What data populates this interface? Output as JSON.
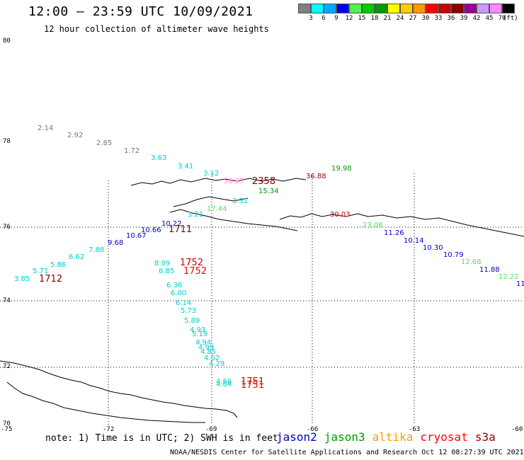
{
  "header": {
    "title": "12:00 – 23:59 UTC 10/09/2021",
    "subtitle": "12 hour collection of altimeter wave heights"
  },
  "legend": {
    "colors": [
      "#808080",
      "#00ffff",
      "#00aaff",
      "#0000ee",
      "#55ee55",
      "#00cc00",
      "#009900",
      "#ffff00",
      "#ffcc00",
      "#ff9900",
      "#ff0000",
      "#cc0000",
      "#880000",
      "#990099",
      "#cc99ff",
      "#ff88ff",
      "#000000"
    ],
    "labels": [
      "3",
      "6",
      "9",
      "12",
      "15",
      "18",
      "21",
      "24",
      "27",
      "30",
      "33",
      "36",
      "39",
      "42",
      "45",
      "70"
    ],
    "unit": "(ft)"
  },
  "axes": {
    "lat_labels": [
      "80",
      "78",
      "76",
      "74",
      "72",
      "70"
    ],
    "lon_labels": [
      "-75",
      "-72",
      "-69",
      "-66",
      "-63",
      "-60"
    ]
  },
  "swh_points": [
    {
      "t": "2.14",
      "c": "#777777"
    },
    {
      "t": "2.92",
      "c": "#777777"
    },
    {
      "t": "2.85",
      "c": "#777777"
    },
    {
      "t": "1.72",
      "c": "#777777"
    },
    {
      "t": "3.63",
      "c": "#00cccc"
    },
    {
      "t": "3.41",
      "c": "#00cccc"
    },
    {
      "t": "3.12",
      "c": "#00cccc"
    },
    {
      "t": "56.97",
      "c": "#ff88cc"
    },
    {
      "t": "36.88",
      "c": "#990000"
    },
    {
      "t": "19.98",
      "c": "#009900"
    },
    {
      "t": "15.34",
      "c": "#009900"
    },
    {
      "t": "3.31",
      "c": "#00cccc"
    },
    {
      "t": "17.44",
      "c": "#55dd55"
    },
    {
      "t": "3.21",
      "c": "#00cccc"
    },
    {
      "t": "30.03",
      "c": "#cc0000"
    },
    {
      "t": "13.08",
      "c": "#55dd55"
    },
    {
      "t": "10.22",
      "c": "#0000cc"
    },
    {
      "t": "10.66",
      "c": "#0000cc"
    },
    {
      "t": "10.67",
      "c": "#0000cc"
    },
    {
      "t": "9.68",
      "c": "#0000cc"
    },
    {
      "t": "7.88",
      "c": "#00cccc"
    },
    {
      "t": "6.62",
      "c": "#00cccc"
    },
    {
      "t": "5.86",
      "c": "#00cccc"
    },
    {
      "t": "5.71",
      "c": "#00cccc"
    },
    {
      "t": "3.85",
      "c": "#00cccc"
    },
    {
      "t": "11.26",
      "c": "#0000cc"
    },
    {
      "t": "10.14",
      "c": "#0000cc"
    },
    {
      "t": "10.30",
      "c": "#0000cc"
    },
    {
      "t": "10.79",
      "c": "#0000cc"
    },
    {
      "t": "12.68",
      "c": "#55dd55"
    },
    {
      "t": "11.88",
      "c": "#0000cc"
    },
    {
      "t": "12.22",
      "c": "#55dd55"
    },
    {
      "t": "11",
      "c": "#0000cc"
    },
    {
      "t": "8.09",
      "c": "#00cccc"
    },
    {
      "t": "6.85",
      "c": "#00cccc"
    },
    {
      "t": "6.36",
      "c": "#00cccc"
    },
    {
      "t": "6.00",
      "c": "#00cccc"
    },
    {
      "t": "6.14",
      "c": "#00cccc"
    },
    {
      "t": "5.73",
      "c": "#00cccc"
    },
    {
      "t": "5.89",
      "c": "#00cccc"
    },
    {
      "t": "4.93",
      "c": "#00cccc"
    },
    {
      "t": "5.19",
      "c": "#00cccc"
    },
    {
      "t": "4.94",
      "c": "#00cccc"
    },
    {
      "t": "4.99",
      "c": "#00cccc"
    },
    {
      "t": "4.85",
      "c": "#00cccc"
    },
    {
      "t": "4.62",
      "c": "#00cccc"
    },
    {
      "t": "4.29",
      "c": "#00cccc"
    },
    {
      "t": "4.66",
      "c": "#00cccc"
    },
    {
      "t": "4.64",
      "c": "#00cccc"
    }
  ],
  "hour_labels": [
    {
      "t": "2358",
      "c": "#880000"
    },
    {
      "t": "1711",
      "c": "#880000"
    },
    {
      "t": "1752",
      "c": "#cc0000"
    },
    {
      "t": "1752",
      "c": "#ff0000"
    },
    {
      "t": "1712",
      "c": "#880000"
    },
    {
      "t": "1751",
      "c": "#cc0000"
    },
    {
      "t": "1751",
      "c": "#ff0000"
    }
  ],
  "footer": {
    "note": "note: 1) Time is in UTC; 2) SWH is in feet",
    "missions": [
      {
        "name": "jason2",
        "color": "#0000cc"
      },
      {
        "name": "jason3",
        "color": "#009900"
      },
      {
        "name": "altika",
        "color": "#ff9900"
      },
      {
        "name": "cryosat",
        "color": "#ff0000"
      },
      {
        "name": "s3a",
        "color": "#880000"
      }
    ],
    "credit": "NOAA/NESDIS Center for Satellite Applications and Research   Oct 12 08:27:39 UTC 2021"
  }
}
